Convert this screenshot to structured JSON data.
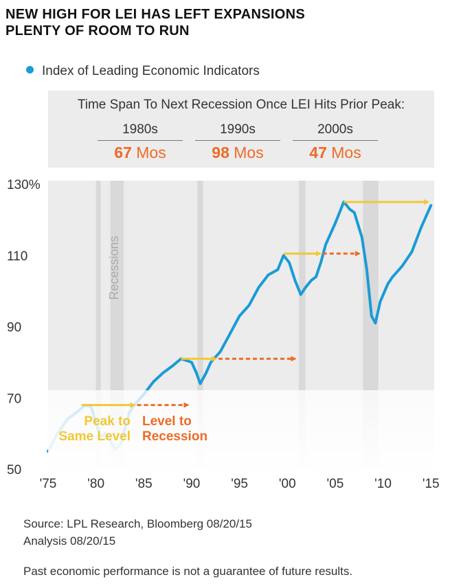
{
  "title_line1": "NEW HIGH FOR LEI HAS LEFT EXPANSIONS",
  "title_line2": "PLENTY OF ROOM TO RUN",
  "legend_label": "Index of Leading Economic Indicators",
  "span_title": "Time Span To Next Recession Once LEI Hits Prior Peak:",
  "decades": [
    {
      "label": "1980s",
      "num": "67",
      "unit": "Mos"
    },
    {
      "label": "1990s",
      "num": "98",
      "unit": "Mos"
    },
    {
      "label": "2000s",
      "num": "47",
      "unit": "Mos"
    }
  ],
  "source": "Source: LPL Research, Bloomberg   08/20/15",
  "analysis": "Analysis   08/20/15",
  "disclaimer": "Past economic performance is not a guarantee of future results.",
  "colors": {
    "line": "#1a9bd7",
    "peak_arrow": "#f2c733",
    "recession_arrow": "#ef6a26",
    "recession_band": "#d9d9d9",
    "panel": "#ececec"
  },
  "chart_data": {
    "type": "line",
    "series_name": "Index of Leading Economic Indicators",
    "xlim": [
      1975,
      2015.2
    ],
    "ylim": [
      50,
      130
    ],
    "ytick_labels": [
      "130%",
      "110",
      "90",
      "70",
      "50"
    ],
    "ytick_values": [
      130,
      110,
      90,
      70,
      50
    ],
    "xtick_labels": [
      "'75",
      "'80",
      "'85",
      "'90",
      "'95",
      "'00",
      "'05",
      "'10",
      "'15"
    ],
    "xtick_values": [
      1975,
      1980,
      1985,
      1990,
      1995,
      2000,
      2005,
      2010,
      2015
    ],
    "recessions": [
      [
        1980.0,
        1980.5
      ],
      [
        1981.5,
        1982.9
      ],
      [
        1990.6,
        1991.2
      ],
      [
        2001.2,
        2001.9
      ],
      [
        2007.9,
        2009.5
      ]
    ],
    "recession_label": "Recessions",
    "x": [
      1975.0,
      1976.0,
      1977.0,
      1978.0,
      1978.9,
      1979.5,
      1980.0,
      1980.5,
      1981.0,
      1981.5,
      1982.0,
      1982.6,
      1983.0,
      1983.5,
      1984.0,
      1985.0,
      1986.0,
      1987.0,
      1988.0,
      1988.9,
      1990.0,
      1990.5,
      1990.9,
      1991.5,
      1992.0,
      1993.0,
      1994.0,
      1995.0,
      1996.0,
      1997.0,
      1998.0,
      1999.0,
      1999.6,
      2000.2,
      2000.8,
      2001.4,
      2001.9,
      2002.5,
      2003.0,
      2003.5,
      2004.0,
      2005.0,
      2005.9,
      2006.5,
      2007.0,
      2007.8,
      2008.3,
      2008.8,
      2009.2,
      2009.7,
      2010.5,
      2011.0,
      2012.0,
      2013.0,
      2014.0,
      2015.0
    ],
    "values": [
      55,
      60,
      64,
      66,
      68,
      67.5,
      63,
      59,
      60,
      58,
      55.5,
      57,
      61,
      66,
      68,
      71,
      74.5,
      77,
      79,
      81,
      80,
      77,
      74,
      77,
      80,
      83,
      88,
      93,
      96,
      101,
      104.5,
      106,
      110,
      108,
      103,
      99,
      101,
      103,
      104,
      108,
      113,
      119,
      125,
      123,
      122,
      115,
      106,
      93,
      91,
      97,
      102,
      104,
      107,
      111,
      118,
      124
    ],
    "arrows": [
      {
        "kind": "peak",
        "x_start": 1978.5,
        "x_end": 1984.3,
        "y": 68
      },
      {
        "kind": "recession",
        "x_start": 1984.3,
        "x_end": 1989.9,
        "y": 68
      },
      {
        "kind": "peak",
        "x_start": 1988.9,
        "x_end": 1992.8,
        "y": 81
      },
      {
        "kind": "recession",
        "x_start": 1992.8,
        "x_end": 2001.1,
        "y": 81
      },
      {
        "kind": "peak",
        "x_start": 1999.6,
        "x_end": 2003.7,
        "y": 110.5
      },
      {
        "kind": "recession",
        "x_start": 2003.7,
        "x_end": 2007.8,
        "y": 110.5
      },
      {
        "kind": "peak",
        "x_start": 2005.9,
        "x_end": 2015.0,
        "y": 125
      }
    ],
    "annotations": [
      {
        "text_line1": "Peak to",
        "text_line2": "Same Level",
        "color": "peak"
      },
      {
        "text_line1": "Level to",
        "text_line2": "Recession",
        "color": "recession"
      }
    ]
  }
}
